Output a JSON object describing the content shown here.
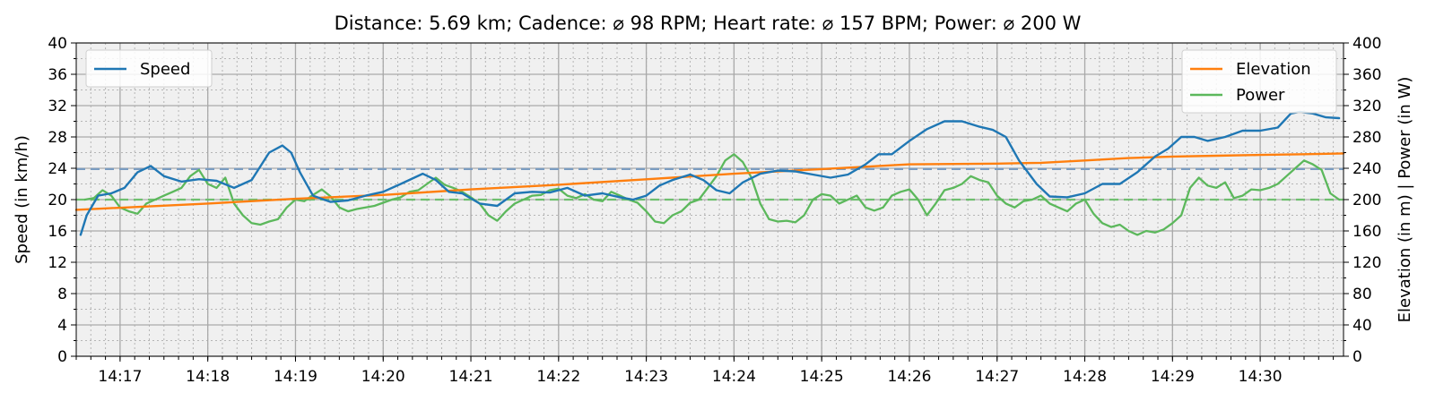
{
  "chart_data": {
    "type": "line",
    "title": "Distance: 5.69 km; Cadence: ⌀ 98 RPM; Heart rate: ⌀ 157 BPM; Power: ⌀ 200 W",
    "x_unit": "minutes since 14:16",
    "xlim": [
      0.5,
      14.95
    ],
    "x_ticks": [
      {
        "v": 1,
        "label": "14:17"
      },
      {
        "v": 2,
        "label": "14:18"
      },
      {
        "v": 3,
        "label": "14:19"
      },
      {
        "v": 4,
        "label": "14:20"
      },
      {
        "v": 5,
        "label": "14:21"
      },
      {
        "v": 6,
        "label": "14:22"
      },
      {
        "v": 7,
        "label": "14:23"
      },
      {
        "v": 8,
        "label": "14:24"
      },
      {
        "v": 9,
        "label": "14:25"
      },
      {
        "v": 10,
        "label": "14:26"
      },
      {
        "v": 11,
        "label": "14:27"
      },
      {
        "v": 12,
        "label": "14:28"
      },
      {
        "v": 13,
        "label": "14:29"
      },
      {
        "v": 14,
        "label": "14:30"
      }
    ],
    "y_left": {
      "label": "Speed (in km/h)",
      "lim": [
        0,
        40
      ],
      "ticks": [
        0,
        4,
        8,
        12,
        16,
        20,
        24,
        28,
        32,
        36,
        40
      ]
    },
    "y_right": {
      "label": "Elevation (in m) | Power (in W)",
      "lim": [
        0,
        400
      ],
      "ticks": [
        0,
        40,
        80,
        120,
        160,
        200,
        240,
        280,
        320,
        360,
        400
      ]
    },
    "grid": true,
    "reference_lines": [
      {
        "axis": "left",
        "value": 23.9,
        "color": "#7a9cc1"
      },
      {
        "axis": "right",
        "value": 200,
        "color": "#6fbf6f"
      }
    ],
    "series": [
      {
        "name": "Speed",
        "axis": "left",
        "color": "#1f77b4",
        "x": [
          0.55,
          0.62,
          0.75,
          0.9,
          1.05,
          1.2,
          1.35,
          1.5,
          1.7,
          1.9,
          2.1,
          2.3,
          2.5,
          2.7,
          2.85,
          2.95,
          3.05,
          3.2,
          3.4,
          3.6,
          3.8,
          4.0,
          4.2,
          4.45,
          4.6,
          4.75,
          4.9,
          5.1,
          5.3,
          5.5,
          5.7,
          5.9,
          6.1,
          6.3,
          6.5,
          6.7,
          6.85,
          7.0,
          7.15,
          7.3,
          7.5,
          7.65,
          7.8,
          7.95,
          8.1,
          8.3,
          8.5,
          8.7,
          8.9,
          9.1,
          9.3,
          9.5,
          9.65,
          9.8,
          10.0,
          10.2,
          10.4,
          10.6,
          10.8,
          10.95,
          11.1,
          11.25,
          11.45,
          11.6,
          11.8,
          12.0,
          12.2,
          12.4,
          12.6,
          12.8,
          12.95,
          13.1,
          13.25,
          13.4,
          13.6,
          13.8,
          14.0,
          14.2,
          14.35,
          14.45,
          14.6,
          14.75,
          14.9
        ],
        "y": [
          15.5,
          18.0,
          20.5,
          20.8,
          21.5,
          23.5,
          24.3,
          23.0,
          22.3,
          22.6,
          22.4,
          21.5,
          22.5,
          26.0,
          26.9,
          26.0,
          23.5,
          20.5,
          19.7,
          19.9,
          20.5,
          21.0,
          22.0,
          23.3,
          22.5,
          21.0,
          20.8,
          19.5,
          19.2,
          20.8,
          21.0,
          20.9,
          21.5,
          20.5,
          20.8,
          20.3,
          20.0,
          20.5,
          21.8,
          22.5,
          23.2,
          22.5,
          21.2,
          20.8,
          22.2,
          23.3,
          23.7,
          23.6,
          23.2,
          22.8,
          23.2,
          24.5,
          25.8,
          25.8,
          27.5,
          29.0,
          30.0,
          30.0,
          29.3,
          28.9,
          28.0,
          25.0,
          22.0,
          20.4,
          20.3,
          20.8,
          22.0,
          22.0,
          23.5,
          25.5,
          26.5,
          28.0,
          28.0,
          27.5,
          28.0,
          28.8,
          28.8,
          29.2,
          31.0,
          31.2,
          31.0,
          30.5,
          30.4
        ]
      },
      {
        "name": "Elevation",
        "axis": "right",
        "color": "#ff7f0e",
        "x": [
          0.5,
          2.0,
          3.0,
          4.0,
          5.0,
          6.0,
          7.0,
          8.0,
          9.0,
          10.0,
          11.0,
          11.5,
          12.0,
          12.5,
          13.0,
          13.5,
          14.0,
          14.5,
          14.95
        ],
        "y": [
          187,
          195,
          201,
          206,
          213,
          219,
          226,
          233,
          239,
          245,
          246,
          247,
          250,
          253,
          255,
          256,
          257,
          258,
          259
        ]
      },
      {
        "name": "Power",
        "axis": "right",
        "color": "#5cb85c",
        "x": [
          0.6,
          0.7,
          0.8,
          0.9,
          1.0,
          1.1,
          1.2,
          1.3,
          1.4,
          1.5,
          1.6,
          1.7,
          1.8,
          1.9,
          2.0,
          2.1,
          2.2,
          2.3,
          2.4,
          2.5,
          2.6,
          2.7,
          2.8,
          2.9,
          3.0,
          3.1,
          3.2,
          3.3,
          3.4,
          3.5,
          3.6,
          3.7,
          3.8,
          3.9,
          4.0,
          4.1,
          4.2,
          4.3,
          4.4,
          4.5,
          4.6,
          4.7,
          4.8,
          4.9,
          5.0,
          5.1,
          5.2,
          5.3,
          5.4,
          5.5,
          5.6,
          5.7,
          5.8,
          5.9,
          6.0,
          6.1,
          6.2,
          6.3,
          6.4,
          6.5,
          6.6,
          6.7,
          6.8,
          6.9,
          7.0,
          7.1,
          7.2,
          7.3,
          7.4,
          7.5,
          7.6,
          7.7,
          7.8,
          7.9,
          8.0,
          8.1,
          8.2,
          8.3,
          8.4,
          8.5,
          8.6,
          8.7,
          8.8,
          8.9,
          9.0,
          9.1,
          9.2,
          9.3,
          9.4,
          9.5,
          9.6,
          9.7,
          9.8,
          9.9,
          10.0,
          10.1,
          10.2,
          10.3,
          10.4,
          10.5,
          10.6,
          10.7,
          10.8,
          10.9,
          11.0,
          11.1,
          11.2,
          11.3,
          11.4,
          11.5,
          11.6,
          11.7,
          11.8,
          11.9,
          12.0,
          12.1,
          12.2,
          12.3,
          12.4,
          12.5,
          12.6,
          12.7,
          12.8,
          12.9,
          13.0,
          13.1,
          13.2,
          13.3,
          13.4,
          13.5,
          13.6,
          13.7,
          13.8,
          13.9,
          14.0,
          14.1,
          14.2,
          14.3,
          14.4,
          14.5,
          14.6,
          14.7,
          14.8,
          14.9
        ],
        "y": [
          200,
          202,
          212,
          205,
          190,
          185,
          182,
          195,
          200,
          205,
          210,
          215,
          230,
          238,
          220,
          215,
          228,
          195,
          180,
          170,
          168,
          172,
          175,
          190,
          200,
          198,
          206,
          213,
          204,
          190,
          185,
          188,
          190,
          192,
          196,
          200,
          203,
          210,
          212,
          220,
          228,
          219,
          215,
          210,
          203,
          195,
          180,
          173,
          185,
          195,
          200,
          205,
          206,
          212,
          214,
          205,
          202,
          207,
          200,
          198,
          210,
          205,
          200,
          196,
          185,
          172,
          170,
          180,
          185,
          196,
          200,
          215,
          230,
          250,
          258,
          248,
          228,
          195,
          175,
          172,
          173,
          171,
          180,
          200,
          207,
          205,
          195,
          200,
          205,
          190,
          186,
          190,
          205,
          210,
          213,
          200,
          180,
          195,
          212,
          215,
          220,
          230,
          225,
          222,
          205,
          195,
          190,
          198,
          200,
          205,
          195,
          190,
          185,
          195,
          200,
          182,
          170,
          165,
          168,
          160,
          155,
          160,
          158,
          162,
          170,
          180,
          215,
          228,
          218,
          215,
          222,
          202,
          205,
          213,
          212,
          215,
          220,
          230,
          240,
          250,
          245,
          238,
          208,
          200
        ]
      }
    ],
    "legends": [
      {
        "position": "upper-left",
        "entries": [
          "Speed"
        ]
      },
      {
        "position": "upper-right",
        "entries": [
          "Elevation",
          "Power"
        ]
      }
    ]
  }
}
